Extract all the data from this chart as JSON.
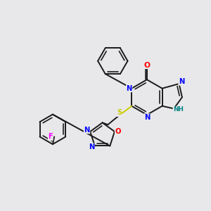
{
  "background_color": "#e8e8ea",
  "bond_color": "#1a1a1a",
  "atom_colors": {
    "N": "#0000ff",
    "O": "#ff0000",
    "S": "#cccc00",
    "F": "#ff00ff",
    "NH": "#008080",
    "C": "#1a1a1a"
  },
  "fig_width": 3.0,
  "fig_height": 3.0,
  "dpi": 100
}
